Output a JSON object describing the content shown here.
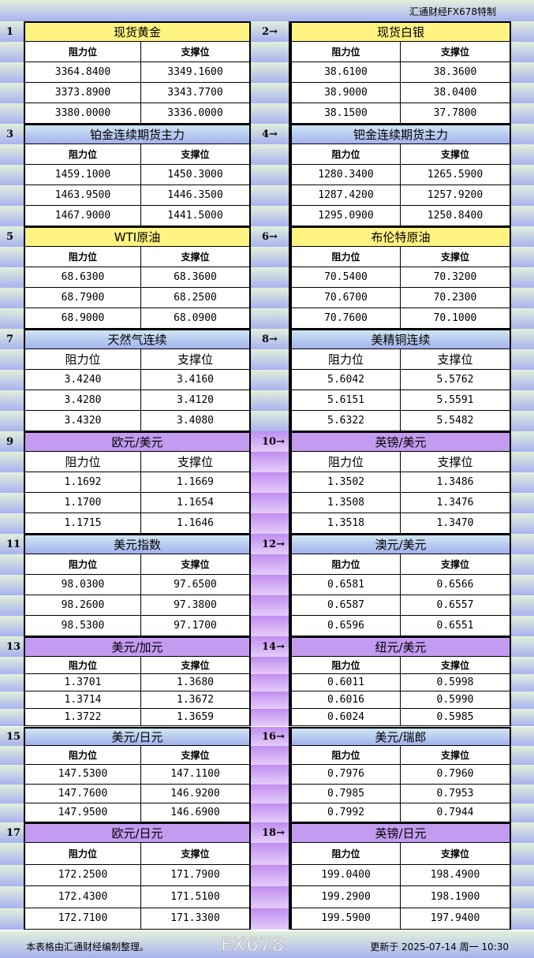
{
  "brand": "汇通财经FX678特制",
  "col_resist": "阻力位",
  "col_support": "支撑位",
  "sections": [
    {
      "no": "1",
      "title": "现货黄金",
      "color": "yellow",
      "resist": [
        "3364.8400",
        "3373.8900",
        "3380.0000"
      ],
      "support": [
        "3349.1600",
        "3343.7700",
        "3336.0000"
      ]
    },
    {
      "no": "2→",
      "title": "现货白银",
      "color": "yellow",
      "resist": [
        "38.6100",
        "38.9000",
        "38.1500"
      ],
      "support": [
        "38.3600",
        "38.0400",
        "37.7800"
      ]
    },
    {
      "no": "3",
      "title": "铂金连续期货主力",
      "color": "blue",
      "resist": [
        "1459.1000",
        "1463.9500",
        "1467.9000"
      ],
      "support": [
        "1450.3000",
        "1446.3500",
        "1441.5000"
      ]
    },
    {
      "no": "4→",
      "title": "钯金连续期货主力",
      "color": "blue",
      "resist": [
        "1280.3400",
        "1287.4200",
        "1295.0900"
      ],
      "support": [
        "1265.5900",
        "1257.9200",
        "1250.8400"
      ]
    },
    {
      "no": "5",
      "title": "WTI原油",
      "color": "yellow",
      "resist": [
        "68.6300",
        "68.7900",
        "68.9000"
      ],
      "support": [
        "68.3600",
        "68.2500",
        "68.0900"
      ]
    },
    {
      "no": "6→",
      "title": "布伦特原油",
      "color": "yellow",
      "resist": [
        "70.5400",
        "70.6700",
        "70.7600"
      ],
      "support": [
        "70.3200",
        "70.2300",
        "70.1000"
      ]
    },
    {
      "no": "7",
      "title": "天然气连续",
      "color": "blue",
      "resist": [
        "3.4240",
        "3.4280",
        "3.4320"
      ],
      "support": [
        "3.4160",
        "3.4120",
        "3.4080"
      ]
    },
    {
      "no": "8→",
      "title": "美精铜连续",
      "color": "blue",
      "resist": [
        "5.6042",
        "5.6151",
        "5.6322"
      ],
      "support": [
        "5.5762",
        "5.5591",
        "5.5482"
      ]
    },
    {
      "no": "9",
      "title": "欧元/美元",
      "color": "purple",
      "resist": [
        "1.1692",
        "1.1700",
        "1.1715"
      ],
      "support": [
        "1.1669",
        "1.1654",
        "1.1646"
      ]
    },
    {
      "no": "10→",
      "title": "英镑/美元",
      "color": "purple",
      "resist": [
        "1.3502",
        "1.3508",
        "1.3518"
      ],
      "support": [
        "1.3486",
        "1.3476",
        "1.3470"
      ]
    },
    {
      "no": "11",
      "title": "美元指数",
      "color": "blue",
      "resist": [
        "98.0300",
        "98.2600",
        "98.5300"
      ],
      "support": [
        "97.6500",
        "97.3800",
        "97.1700"
      ]
    },
    {
      "no": "12→",
      "title": "澳元/美元",
      "color": "blue",
      "resist": [
        "0.6581",
        "0.6587",
        "0.6596"
      ],
      "support": [
        "0.6566",
        "0.6557",
        "0.6551"
      ]
    },
    {
      "no": "13",
      "title": "美元/加元",
      "color": "purple",
      "resist": [
        "1.3701",
        "1.3714",
        "1.3722"
      ],
      "support": [
        "1.3680",
        "1.3672",
        "1.3659"
      ]
    },
    {
      "no": "14→",
      "title": "纽元/美元",
      "color": "purple",
      "resist": [
        "0.6011",
        "0.6016",
        "0.6024"
      ],
      "support": [
        "0.5998",
        "0.5990",
        "0.5985"
      ]
    },
    {
      "no": "15",
      "title": "美元/日元",
      "color": "blue",
      "resist": [
        "147.5300",
        "147.7600",
        "147.9500"
      ],
      "support": [
        "147.1100",
        "146.9200",
        "146.6900"
      ]
    },
    {
      "no": "16→",
      "title": "美元/瑞郎",
      "color": "blue",
      "resist": [
        "0.7976",
        "0.7985",
        "0.7992"
      ],
      "support": [
        "0.7960",
        "0.7953",
        "0.7944"
      ]
    },
    {
      "no": "17",
      "title": "欧元/日元",
      "color": "purple",
      "resist": [
        "172.2500",
        "172.4300",
        "172.7100"
      ],
      "support": [
        "171.7900",
        "171.5100",
        "171.3300"
      ]
    },
    {
      "no": "18→",
      "title": "英镑/日元",
      "color": "purple",
      "resist": [
        "199.0400",
        "199.2900",
        "199.5900"
      ],
      "support": [
        "198.4900",
        "198.1900",
        "197.9400"
      ]
    }
  ],
  "footer": {
    "note": "本表格由汇通财经编制整理。",
    "updated": "更新于 2025-07-14 周一 10:30"
  },
  "watermark": "FX678"
}
